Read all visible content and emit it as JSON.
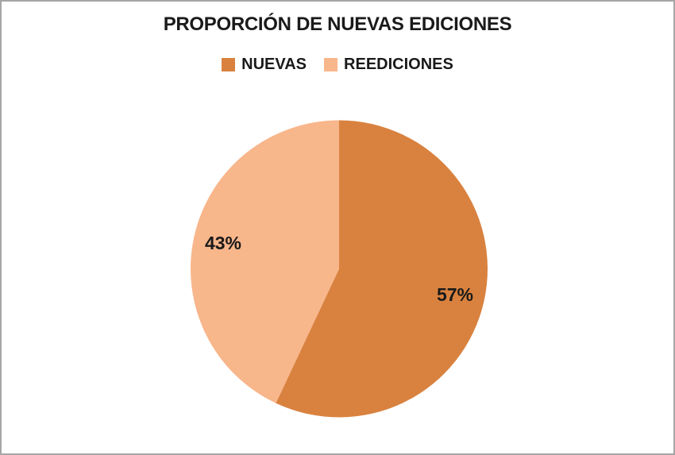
{
  "window": {
    "background_color": "#ffffff",
    "border_color": "#a6a6a6",
    "text_color": "#1a1a1a"
  },
  "chart_data": {
    "type": "pie",
    "title": "PROPORCIÓN DE NUEVAS EDICIONES",
    "legend_position": "top",
    "start_angle_deg": 0,
    "direction": "clockwise",
    "slices": [
      {
        "label": "NUEVAS",
        "value": 57,
        "display": "57%",
        "color": "#d9823f"
      },
      {
        "label": "REEDICIONES",
        "value": 43,
        "display": "43%",
        "color": "#f8b68b"
      }
    ]
  }
}
